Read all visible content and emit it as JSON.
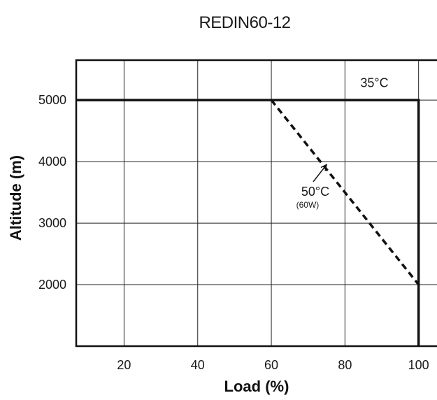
{
  "chart_data": {
    "type": "line",
    "title": "REDIN60-12",
    "xlabel": "Load (%)",
    "ylabel": "Altitude (m)",
    "xlim": [
      7,
      105
    ],
    "ylim": [
      1000,
      5650
    ],
    "x_ticks": [
      20,
      40,
      60,
      80,
      100
    ],
    "y_ticks": [
      2000,
      3000,
      4000,
      5000
    ],
    "grid": true,
    "series": [
      {
        "name": "35°C",
        "style": "solid",
        "color": "#111111",
        "points": [
          [
            7,
            5000
          ],
          [
            100,
            5000
          ],
          [
            100,
            1000
          ]
        ]
      },
      {
        "name": "50°C",
        "note": "(60W)",
        "style": "dashed",
        "color": "#111111",
        "points": [
          [
            60,
            5000
          ],
          [
            100,
            2000
          ]
        ]
      }
    ],
    "annotations": [
      {
        "text": "35°C",
        "x": 88,
        "y": 5280
      },
      {
        "text": "50°C",
        "sub": "(60W)",
        "x": 71,
        "y": 3400,
        "arrow_to": [
          75,
          3950
        ]
      }
    ]
  }
}
